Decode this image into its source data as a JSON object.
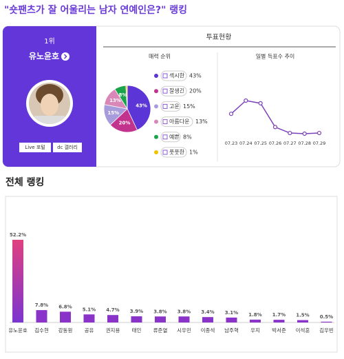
{
  "page_title": "\"숏팬츠가 잘 어울리는 남자 연예인은?\" 랭킹",
  "winner": {
    "rank": "1위",
    "name": "유노윤호",
    "buttons": [
      "Live 포털",
      "dc 갤러리"
    ]
  },
  "vote_header": "투표현황",
  "chart_data": [
    {
      "type": "pie",
      "title": "매력 순위",
      "categories": [
        "섹시한",
        "잘생긴",
        "고운",
        "아름다운",
        "예쁜",
        "풋풋한"
      ],
      "values": [
        43,
        20,
        15,
        13,
        8,
        1
      ],
      "value_labels": [
        "43%",
        "20%",
        "15%",
        "13%",
        "8%",
        "1%"
      ],
      "colors": [
        "#5b35d5",
        "#c2338e",
        "#a89bdc",
        "#d987b8",
        "#1aa34a",
        "#f2c200"
      ]
    },
    {
      "type": "line",
      "title": "일별 득표수 추이",
      "x": [
        "07.23",
        "07.24",
        "07.25",
        "07.26",
        "07.27",
        "07.28",
        "07.29"
      ],
      "values": [
        62,
        82,
        78,
        42,
        33,
        32,
        33
      ],
      "color": "#7b3fb8"
    },
    {
      "type": "bar",
      "title": "전체 랭킹",
      "categories": [
        "유노윤호",
        "김수현",
        "강동원",
        "공유",
        "권지용",
        "태인",
        "류준열",
        "시우민",
        "이종석",
        "남주혁",
        "우지",
        "박서준",
        "이석훈",
        "김우빈"
      ],
      "values": [
        52.2,
        7.8,
        6.8,
        5.1,
        4.7,
        3.9,
        3.8,
        3.8,
        3.4,
        3.1,
        1.8,
        1.7,
        1.5,
        0.5
      ],
      "value_labels": [
        "52.2%",
        "7.8%",
        "6.8%",
        "5.1%",
        "4.7%",
        "3.9%",
        "3.8%",
        "3.8%",
        "3.4%",
        "3.1%",
        "1.8%",
        "1.7%",
        "1.5%",
        "0.5%"
      ],
      "color": "#8a33c8",
      "top_color": "#e0407f"
    }
  ]
}
